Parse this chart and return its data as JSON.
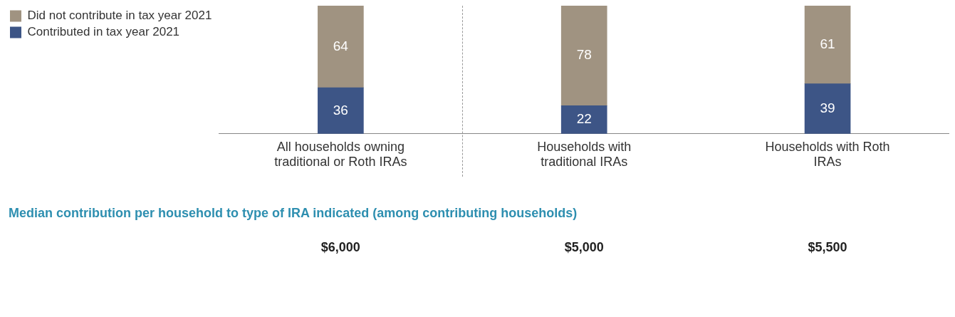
{
  "chart_data": {
    "type": "bar",
    "stacked": true,
    "categories": [
      "All households owning traditional or Roth IRAs",
      "Households with traditional IRAs",
      "Households with Roth IRAs"
    ],
    "series": [
      {
        "name": "Contributed in tax year 2021",
        "color": "#3d5586",
        "values": [
          36,
          22,
          39
        ]
      },
      {
        "name": "Did not contribute in tax year 2021",
        "color": "#a09381",
        "values": [
          64,
          78,
          61
        ]
      }
    ],
    "data_labels": true,
    "legend": "top left",
    "grid": false,
    "tick_labels": "x",
    "annotations": [
      "Median contribution per household to type of IRA indicated (among contributing households)",
      "$6,000",
      "$5,000",
      "$5,500"
    ]
  }
}
